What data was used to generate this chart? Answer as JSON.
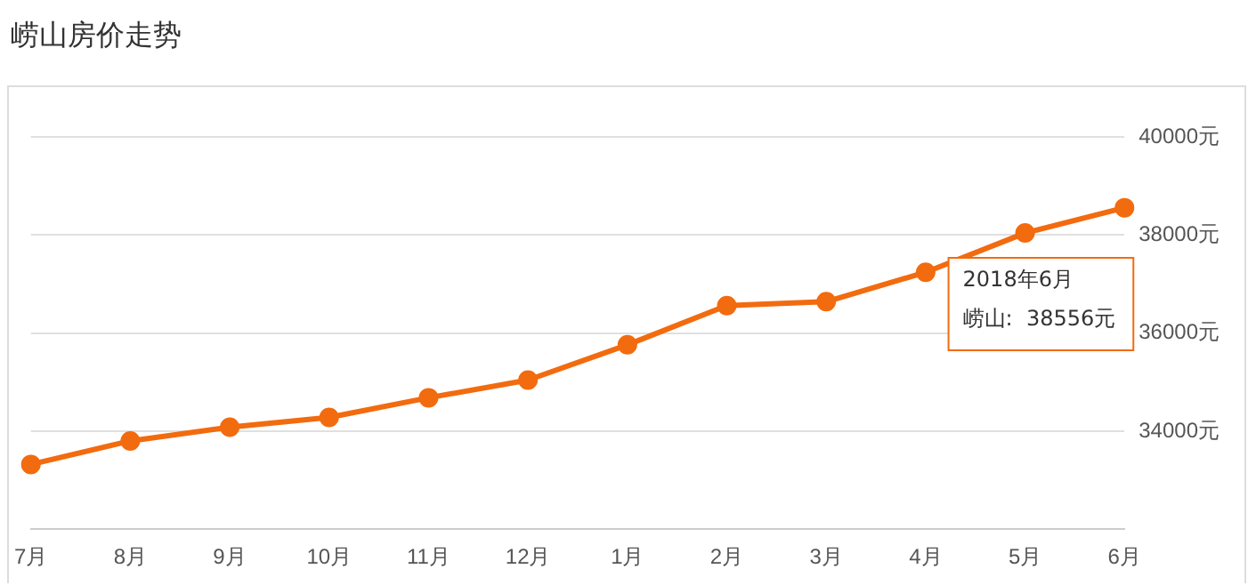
{
  "chart_data": {
    "type": "line",
    "title": "崂山房价走势",
    "categories": [
      "7月",
      "8月",
      "9月",
      "10月",
      "11月",
      "12月",
      "1月",
      "2月",
      "3月",
      "4月",
      "5月",
      "6月"
    ],
    "series": [
      {
        "color": "#f26b0f",
        "values": [
          33320,
          33800,
          34080,
          34280,
          34680,
          35040,
          35760,
          36560,
          36640,
          37240,
          38040,
          38556
        ]
      }
    ],
    "ylim": [
      32000,
      40000
    ],
    "yticks": [
      {
        "value": 34000,
        "label": "34000元"
      },
      {
        "value": 36000,
        "label": "36000元"
      },
      {
        "value": 38000,
        "label": "38000元"
      },
      {
        "value": 40000,
        "label": "40000元"
      }
    ],
    "grid": "y",
    "marker": "circle",
    "line_style": "solid",
    "legend": false,
    "annotations": [
      "2018年6月",
      "崂山:  38556元"
    ]
  }
}
